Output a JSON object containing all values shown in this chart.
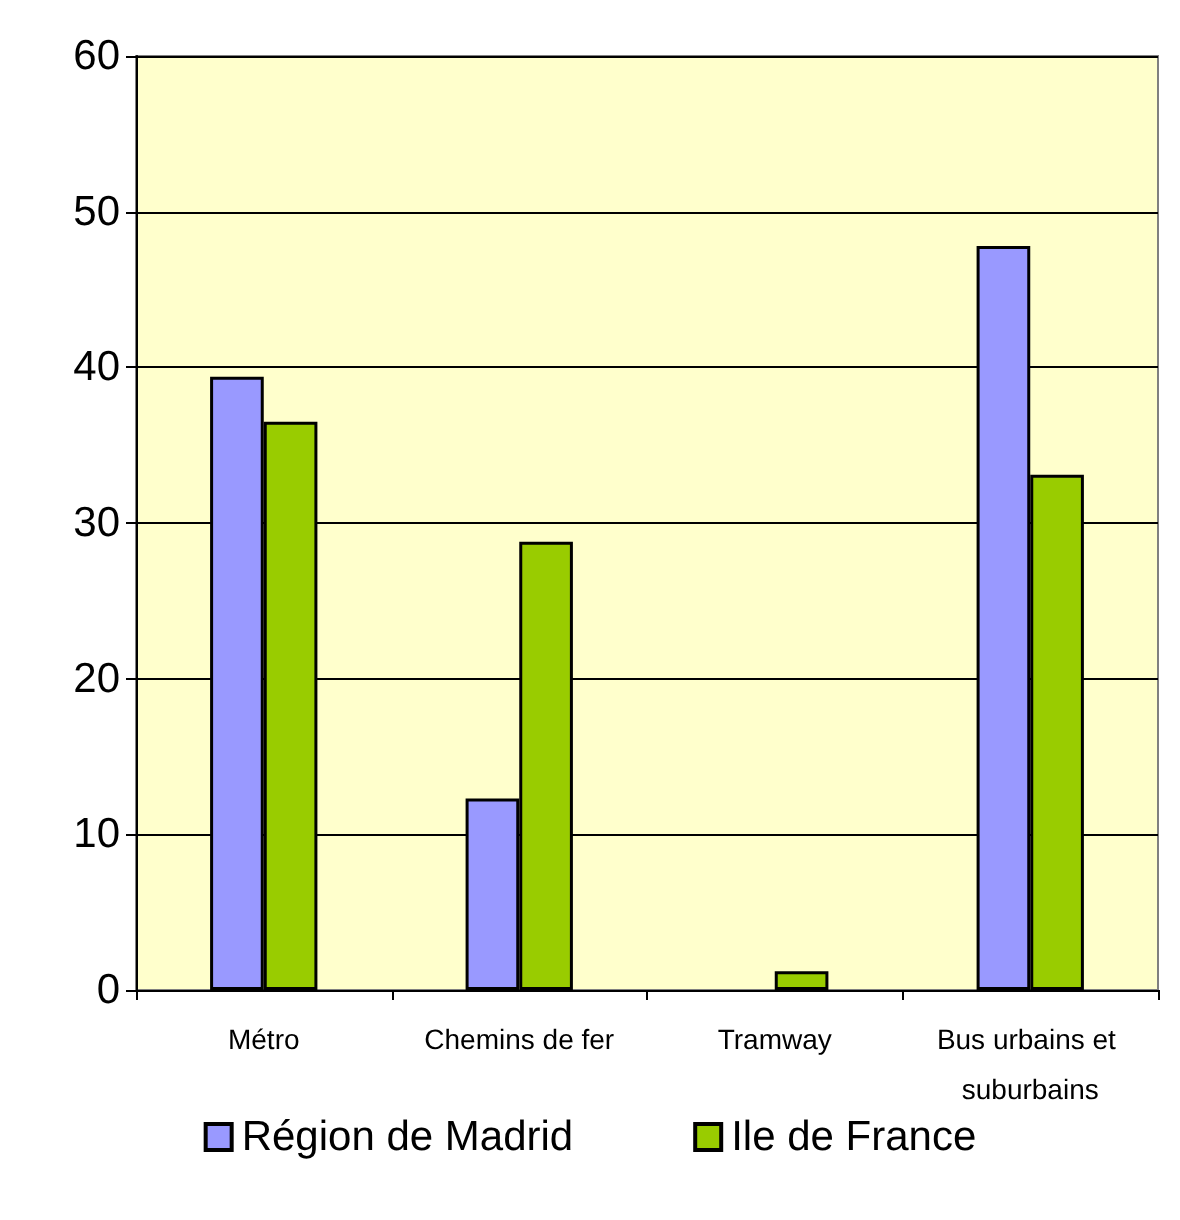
{
  "chart_data": {
    "type": "bar",
    "categories": [
      "Métro",
      "Chemins de fer",
      "Tramway",
      "Bus urbains et suburbains"
    ],
    "series": [
      {
        "name": "Région de Madrid",
        "color": "#9999ff",
        "values": [
          39.4,
          12.3,
          null,
          47.8
        ]
      },
      {
        "name": "Ile de France",
        "color": "#99cc00",
        "values": [
          36.5,
          28.8,
          1.2,
          33.1
        ]
      }
    ],
    "ylim": [
      0,
      60
    ],
    "yticks": [
      0,
      10,
      20,
      30,
      40,
      50,
      60
    ],
    "grid": "y",
    "legend": "bottom"
  }
}
